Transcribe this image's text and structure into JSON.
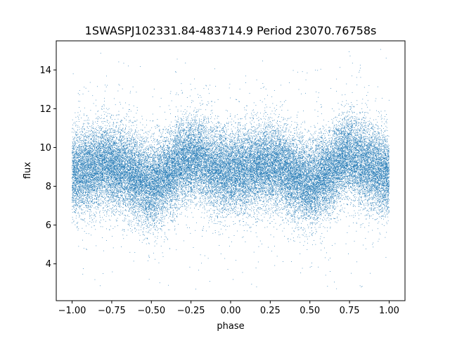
{
  "chart_data": {
    "type": "scatter",
    "title": "1SWASPJ102331.84-483714.9 Period 23070.76758s",
    "xlabel": "phase",
    "ylabel": "flux",
    "xlim": [
      -1.1,
      1.1
    ],
    "ylim": [
      2.1,
      15.5
    ],
    "x_ticks": [
      -1.0,
      -0.75,
      -0.5,
      -0.25,
      0.0,
      0.25,
      0.5,
      0.75,
      1.0
    ],
    "x_tick_labels": [
      "−1.00",
      "−0.75",
      "−0.50",
      "−0.25",
      "0.00",
      "0.25",
      "0.50",
      "0.75",
      "1.00"
    ],
    "y_ticks": [
      4,
      6,
      8,
      10,
      12,
      14
    ],
    "y_tick_labels": [
      "4",
      "6",
      "8",
      "10",
      "12",
      "14"
    ],
    "grid": false,
    "marker_color": "#1f77b4",
    "series": [
      {
        "phase_range": [
          -1.0,
          1.0
        ],
        "points_approx": 40000,
        "mean_flux_curve": {
          "phase": [
            -1.0,
            -0.9,
            -0.8,
            -0.7,
            -0.6,
            -0.5,
            -0.4,
            -0.3,
            -0.25,
            -0.2,
            -0.1,
            0.0,
            0.1,
            0.2,
            0.25,
            0.3,
            0.4,
            0.5,
            0.6,
            0.7,
            0.75,
            0.8,
            0.9,
            1.0
          ],
          "flux": [
            8.6,
            8.9,
            9.1,
            8.9,
            8.5,
            8.0,
            8.6,
            9.3,
            9.5,
            9.4,
            8.9,
            8.7,
            8.9,
            9.1,
            9.1,
            9.0,
            8.5,
            8.1,
            8.6,
            9.4,
            9.6,
            9.3,
            8.9,
            8.6
          ]
        },
        "scatter_sd": 1.05
      }
    ]
  }
}
